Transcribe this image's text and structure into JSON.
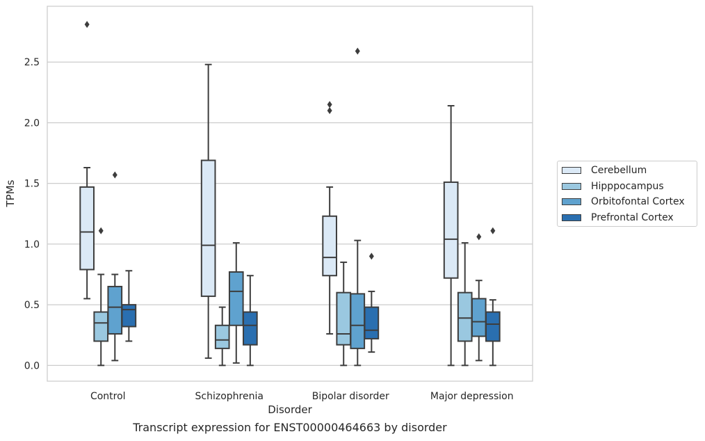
{
  "chart_data": {
    "type": "box",
    "title": "",
    "caption": "Transcript expression for ENST00000464663 by disorder",
    "xlabel": "Disorder",
    "ylabel": "TPMs",
    "ylim": [
      -0.13,
      2.96
    ],
    "yticks": [
      "0.0",
      "0.5",
      "1.0",
      "1.5",
      "2.0",
      "2.5"
    ],
    "ytick_values": [
      0.0,
      0.5,
      1.0,
      1.5,
      2.0,
      2.5
    ],
    "grid": "horizontal",
    "legend_position": "right",
    "categories": [
      "Control",
      "Schizophrenia",
      "Bipolar disorder",
      "Major depression"
    ],
    "series": [
      {
        "name": "Cerebellum",
        "color": "#dbe9f6",
        "boxes": [
          {
            "whislo": 0.55,
            "q1": 0.79,
            "med": 1.1,
            "q3": 1.47,
            "whishi": 1.63,
            "fliers": [
              2.81
            ]
          },
          {
            "whislo": 0.06,
            "q1": 0.57,
            "med": 0.99,
            "q3": 1.69,
            "whishi": 2.48,
            "fliers": []
          },
          {
            "whislo": 0.26,
            "q1": 0.74,
            "med": 0.89,
            "q3": 1.23,
            "whishi": 1.47,
            "fliers": [
              2.1,
              2.15
            ]
          },
          {
            "whislo": 0.0,
            "q1": 0.72,
            "med": 1.04,
            "q3": 1.51,
            "whishi": 2.14,
            "fliers": []
          }
        ]
      },
      {
        "name": "Hipppocampus",
        "color": "#9ac8e0",
        "boxes": [
          {
            "whislo": 0.0,
            "q1": 0.2,
            "med": 0.35,
            "q3": 0.44,
            "whishi": 0.75,
            "fliers": [
              1.11
            ]
          },
          {
            "whislo": 0.0,
            "q1": 0.14,
            "med": 0.21,
            "q3": 0.33,
            "whishi": 0.48,
            "fliers": []
          },
          {
            "whislo": 0.0,
            "q1": 0.17,
            "med": 0.26,
            "q3": 0.6,
            "whishi": 0.85,
            "fliers": []
          },
          {
            "whislo": 0.0,
            "q1": 0.2,
            "med": 0.39,
            "q3": 0.6,
            "whishi": 1.01,
            "fliers": []
          }
        ]
      },
      {
        "name": "Orbitofontal Cortex",
        "color": "#5fa2cf",
        "boxes": [
          {
            "whislo": 0.04,
            "q1": 0.26,
            "med": 0.48,
            "q3": 0.65,
            "whishi": 0.75,
            "fliers": [
              1.57
            ]
          },
          {
            "whislo": 0.02,
            "q1": 0.33,
            "med": 0.61,
            "q3": 0.77,
            "whishi": 1.01,
            "fliers": []
          },
          {
            "whislo": 0.0,
            "q1": 0.14,
            "med": 0.33,
            "q3": 0.59,
            "whishi": 1.03,
            "fliers": [
              2.59
            ]
          },
          {
            "whislo": 0.04,
            "q1": 0.24,
            "med": 0.36,
            "q3": 0.55,
            "whishi": 0.7,
            "fliers": [
              1.06
            ]
          }
        ]
      },
      {
        "name": "Prefrontal Cortex",
        "color": "#2a6fb0",
        "boxes": [
          {
            "whislo": 0.2,
            "q1": 0.32,
            "med": 0.46,
            "q3": 0.5,
            "whishi": 0.78,
            "fliers": []
          },
          {
            "whislo": 0.0,
            "q1": 0.17,
            "med": 0.33,
            "q3": 0.44,
            "whishi": 0.74,
            "fliers": []
          },
          {
            "whislo": 0.11,
            "q1": 0.22,
            "med": 0.29,
            "q3": 0.48,
            "whishi": 0.61,
            "fliers": [
              0.9
            ]
          },
          {
            "whislo": 0.0,
            "q1": 0.2,
            "med": 0.34,
            "q3": 0.44,
            "whishi": 0.54,
            "fliers": [
              1.11
            ]
          }
        ]
      }
    ]
  }
}
